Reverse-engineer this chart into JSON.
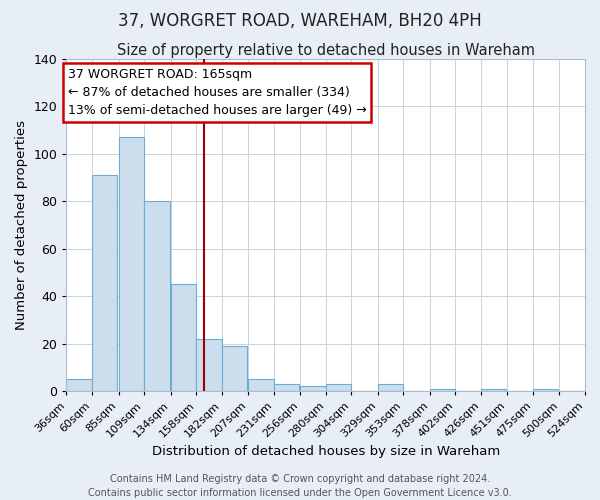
{
  "title": "37, WORGRET ROAD, WAREHAM, BH20 4PH",
  "subtitle": "Size of property relative to detached houses in Wareham",
  "xlabel": "Distribution of detached houses by size in Wareham",
  "ylabel": "Number of detached properties",
  "bar_left_edges": [
    36,
    60,
    85,
    109,
    134,
    158,
    182,
    207,
    231,
    256,
    280,
    304,
    329,
    353,
    378,
    402,
    426,
    451,
    475,
    500
  ],
  "bar_heights": [
    5,
    91,
    107,
    80,
    45,
    22,
    19,
    5,
    3,
    2,
    3,
    0,
    3,
    0,
    1,
    0,
    1,
    0,
    1,
    0
  ],
  "bin_width": 24,
  "tick_labels": [
    "36sqm",
    "60sqm",
    "85sqm",
    "109sqm",
    "134sqm",
    "158sqm",
    "182sqm",
    "207sqm",
    "231sqm",
    "256sqm",
    "280sqm",
    "304sqm",
    "329sqm",
    "353sqm",
    "378sqm",
    "402sqm",
    "426sqm",
    "451sqm",
    "475sqm",
    "500sqm",
    "524sqm"
  ],
  "ylim": [
    0,
    140
  ],
  "yticks": [
    0,
    20,
    40,
    60,
    80,
    100,
    120,
    140
  ],
  "property_line_x": 165,
  "bar_face_color": "#ccdded",
  "bar_edge_color": "#6aaed6",
  "vline_color": "#990000",
  "annotation_line1": "37 WORGRET ROAD: 165sqm",
  "annotation_line2": "← 87% of detached houses are smaller (334)",
  "annotation_line3": "13% of semi-detached houses are larger (49) →",
  "annotation_box_color": "#ffffff",
  "annotation_box_edge": "#cc0000",
  "footer_line1": "Contains HM Land Registry data © Crown copyright and database right 2024.",
  "footer_line2": "Contains public sector information licensed under the Open Government Licence v3.0.",
  "background_color": "#e8eef5",
  "plot_background_color": "#ffffff",
  "grid_color": "#c8d4e0",
  "title_fontsize": 12,
  "subtitle_fontsize": 10.5,
  "xlabel_fontsize": 9.5,
  "ylabel_fontsize": 9.5,
  "tick_fontsize": 8,
  "annot_fontsize": 9,
  "footer_fontsize": 7
}
